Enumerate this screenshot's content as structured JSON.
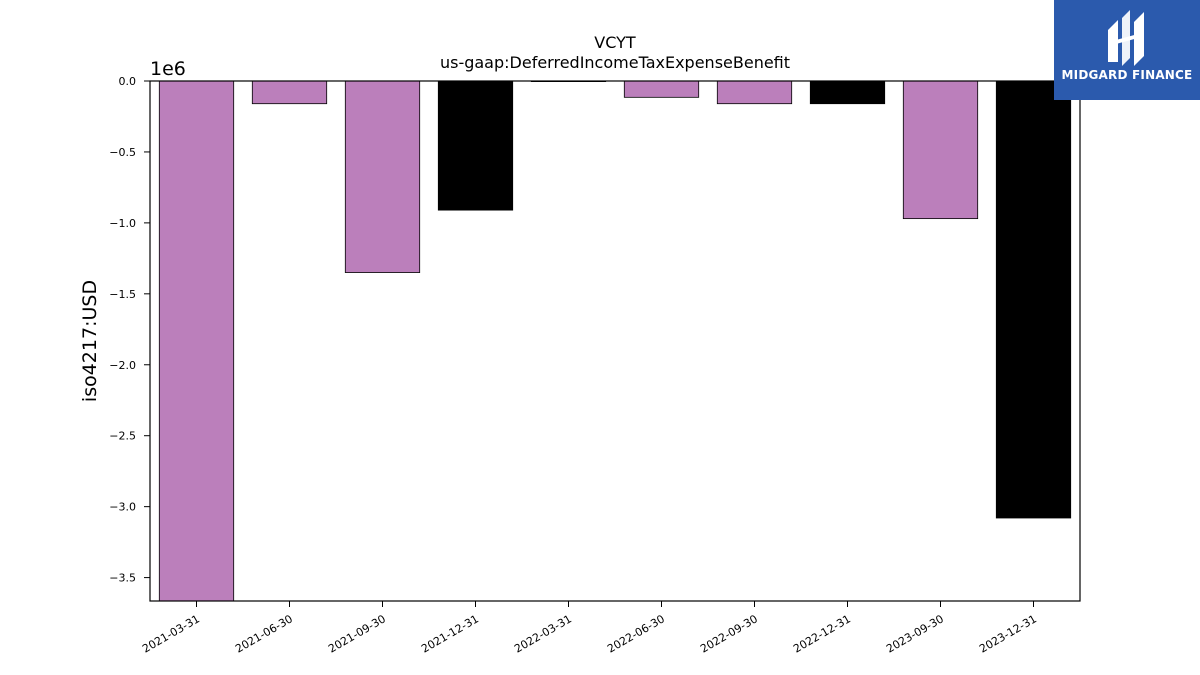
{
  "chart_data": {
    "type": "bar",
    "title": "VCYT",
    "subtitle": "us-gaap:DeferredIncomeTaxExpenseBenefit",
    "ylabel": "iso4217:USD",
    "xlabel": "",
    "offset_label": "1e6",
    "categories": [
      "2021-03-31",
      "2021-06-30",
      "2021-09-30",
      "2021-12-31",
      "2022-03-31",
      "2022-06-30",
      "2022-09-30",
      "2022-12-31",
      "2023-09-30",
      "2023-12-31"
    ],
    "values": [
      -3700000,
      -160000,
      -1350000,
      -910000,
      0,
      -115000,
      -160000,
      -160000,
      -970000,
      -3080000
    ],
    "colors": [
      "#bb7fbb",
      "#bb7fbb",
      "#bb7fbb",
      "#000000",
      "#000000",
      "#bb7fbb",
      "#bb7fbb",
      "#000000",
      "#bb7fbb",
      "#000000"
    ],
    "ylim": [
      -3.665,
      0.0
    ],
    "yticks": [
      0.0,
      -0.5,
      -1.0,
      -1.5,
      -2.0,
      -2.5,
      -3.0,
      -3.5
    ],
    "ytick_labels": [
      "0.0",
      "−0.5",
      "−1.0",
      "−1.5",
      "−2.0",
      "−2.5",
      "−3.0",
      "−3.5"
    ],
    "grid": false
  },
  "logo": {
    "text": "MIDGARD FINANCE",
    "icon": "midgard-logo-icon",
    "background": "#2b5aad"
  }
}
